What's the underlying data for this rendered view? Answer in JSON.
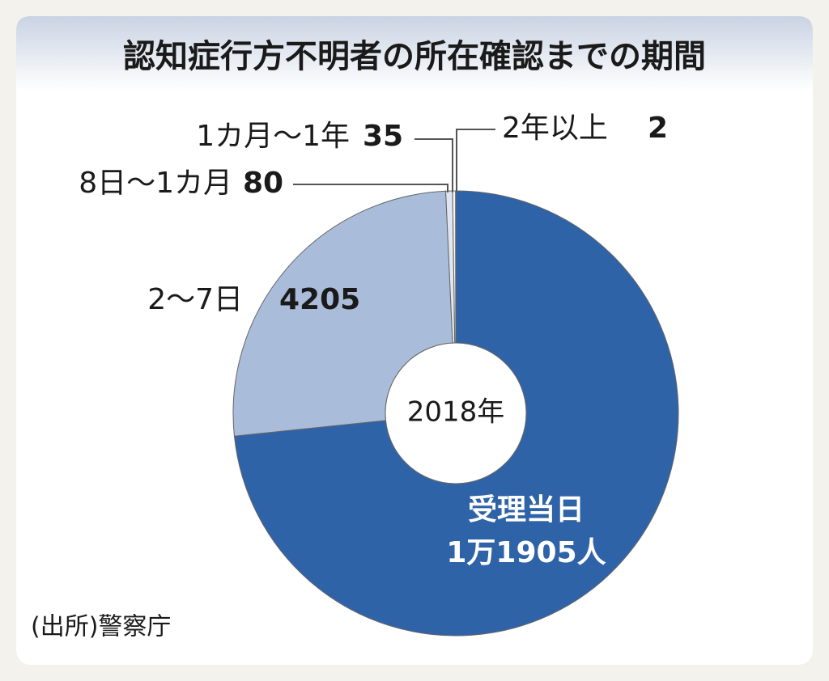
{
  "chart_data": {
    "type": "pie",
    "title": "認知症行方不明者の所在確認までの期間",
    "center_label": "2018年",
    "categories": [
      "受理当日",
      "2～7日",
      "8日～1カ月",
      "1カ月～1年",
      "2年以上"
    ],
    "values": [
      11905,
      4205,
      80,
      35,
      2
    ],
    "value_labels": [
      "1万1905人",
      "4205",
      "80",
      "35",
      "2"
    ],
    "colors": [
      "#2f63a8",
      "#a9bcd9",
      "#dfe6f0",
      "#f4f6fa",
      "#ffffff"
    ],
    "source": "(出所)警察庁"
  }
}
